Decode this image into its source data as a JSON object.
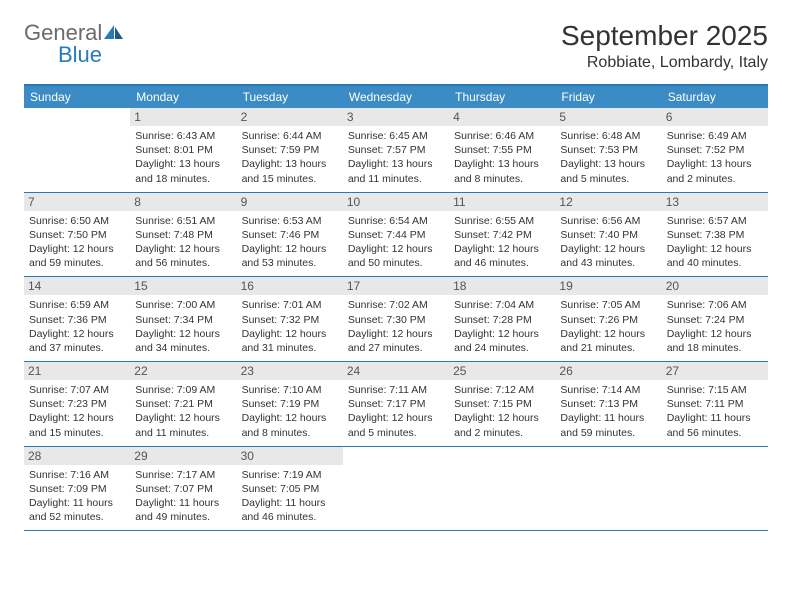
{
  "logo": {
    "text1": "General",
    "text2": "Blue"
  },
  "title": "September 2025",
  "location": "Robbiate, Lombardy, Italy",
  "colors": {
    "header_bg": "#3b8bc4",
    "border": "#2a7ab8",
    "daynum_bg": "#e8e8e8",
    "page_bg": "#ffffff"
  },
  "day_names": [
    "Sunday",
    "Monday",
    "Tuesday",
    "Wednesday",
    "Thursday",
    "Friday",
    "Saturday"
  ],
  "weeks": [
    [
      {
        "n": "",
        "sunrise": "",
        "sunset": "",
        "daylight": ""
      },
      {
        "n": "1",
        "sunrise": "Sunrise: 6:43 AM",
        "sunset": "Sunset: 8:01 PM",
        "daylight": "Daylight: 13 hours and 18 minutes."
      },
      {
        "n": "2",
        "sunrise": "Sunrise: 6:44 AM",
        "sunset": "Sunset: 7:59 PM",
        "daylight": "Daylight: 13 hours and 15 minutes."
      },
      {
        "n": "3",
        "sunrise": "Sunrise: 6:45 AM",
        "sunset": "Sunset: 7:57 PM",
        "daylight": "Daylight: 13 hours and 11 minutes."
      },
      {
        "n": "4",
        "sunrise": "Sunrise: 6:46 AM",
        "sunset": "Sunset: 7:55 PM",
        "daylight": "Daylight: 13 hours and 8 minutes."
      },
      {
        "n": "5",
        "sunrise": "Sunrise: 6:48 AM",
        "sunset": "Sunset: 7:53 PM",
        "daylight": "Daylight: 13 hours and 5 minutes."
      },
      {
        "n": "6",
        "sunrise": "Sunrise: 6:49 AM",
        "sunset": "Sunset: 7:52 PM",
        "daylight": "Daylight: 13 hours and 2 minutes."
      }
    ],
    [
      {
        "n": "7",
        "sunrise": "Sunrise: 6:50 AM",
        "sunset": "Sunset: 7:50 PM",
        "daylight": "Daylight: 12 hours and 59 minutes."
      },
      {
        "n": "8",
        "sunrise": "Sunrise: 6:51 AM",
        "sunset": "Sunset: 7:48 PM",
        "daylight": "Daylight: 12 hours and 56 minutes."
      },
      {
        "n": "9",
        "sunrise": "Sunrise: 6:53 AM",
        "sunset": "Sunset: 7:46 PM",
        "daylight": "Daylight: 12 hours and 53 minutes."
      },
      {
        "n": "10",
        "sunrise": "Sunrise: 6:54 AM",
        "sunset": "Sunset: 7:44 PM",
        "daylight": "Daylight: 12 hours and 50 minutes."
      },
      {
        "n": "11",
        "sunrise": "Sunrise: 6:55 AM",
        "sunset": "Sunset: 7:42 PM",
        "daylight": "Daylight: 12 hours and 46 minutes."
      },
      {
        "n": "12",
        "sunrise": "Sunrise: 6:56 AM",
        "sunset": "Sunset: 7:40 PM",
        "daylight": "Daylight: 12 hours and 43 minutes."
      },
      {
        "n": "13",
        "sunrise": "Sunrise: 6:57 AM",
        "sunset": "Sunset: 7:38 PM",
        "daylight": "Daylight: 12 hours and 40 minutes."
      }
    ],
    [
      {
        "n": "14",
        "sunrise": "Sunrise: 6:59 AM",
        "sunset": "Sunset: 7:36 PM",
        "daylight": "Daylight: 12 hours and 37 minutes."
      },
      {
        "n": "15",
        "sunrise": "Sunrise: 7:00 AM",
        "sunset": "Sunset: 7:34 PM",
        "daylight": "Daylight: 12 hours and 34 minutes."
      },
      {
        "n": "16",
        "sunrise": "Sunrise: 7:01 AM",
        "sunset": "Sunset: 7:32 PM",
        "daylight": "Daylight: 12 hours and 31 minutes."
      },
      {
        "n": "17",
        "sunrise": "Sunrise: 7:02 AM",
        "sunset": "Sunset: 7:30 PM",
        "daylight": "Daylight: 12 hours and 27 minutes."
      },
      {
        "n": "18",
        "sunrise": "Sunrise: 7:04 AM",
        "sunset": "Sunset: 7:28 PM",
        "daylight": "Daylight: 12 hours and 24 minutes."
      },
      {
        "n": "19",
        "sunrise": "Sunrise: 7:05 AM",
        "sunset": "Sunset: 7:26 PM",
        "daylight": "Daylight: 12 hours and 21 minutes."
      },
      {
        "n": "20",
        "sunrise": "Sunrise: 7:06 AM",
        "sunset": "Sunset: 7:24 PM",
        "daylight": "Daylight: 12 hours and 18 minutes."
      }
    ],
    [
      {
        "n": "21",
        "sunrise": "Sunrise: 7:07 AM",
        "sunset": "Sunset: 7:23 PM",
        "daylight": "Daylight: 12 hours and 15 minutes."
      },
      {
        "n": "22",
        "sunrise": "Sunrise: 7:09 AM",
        "sunset": "Sunset: 7:21 PM",
        "daylight": "Daylight: 12 hours and 11 minutes."
      },
      {
        "n": "23",
        "sunrise": "Sunrise: 7:10 AM",
        "sunset": "Sunset: 7:19 PM",
        "daylight": "Daylight: 12 hours and 8 minutes."
      },
      {
        "n": "24",
        "sunrise": "Sunrise: 7:11 AM",
        "sunset": "Sunset: 7:17 PM",
        "daylight": "Daylight: 12 hours and 5 minutes."
      },
      {
        "n": "25",
        "sunrise": "Sunrise: 7:12 AM",
        "sunset": "Sunset: 7:15 PM",
        "daylight": "Daylight: 12 hours and 2 minutes."
      },
      {
        "n": "26",
        "sunrise": "Sunrise: 7:14 AM",
        "sunset": "Sunset: 7:13 PM",
        "daylight": "Daylight: 11 hours and 59 minutes."
      },
      {
        "n": "27",
        "sunrise": "Sunrise: 7:15 AM",
        "sunset": "Sunset: 7:11 PM",
        "daylight": "Daylight: 11 hours and 56 minutes."
      }
    ],
    [
      {
        "n": "28",
        "sunrise": "Sunrise: 7:16 AM",
        "sunset": "Sunset: 7:09 PM",
        "daylight": "Daylight: 11 hours and 52 minutes."
      },
      {
        "n": "29",
        "sunrise": "Sunrise: 7:17 AM",
        "sunset": "Sunset: 7:07 PM",
        "daylight": "Daylight: 11 hours and 49 minutes."
      },
      {
        "n": "30",
        "sunrise": "Sunrise: 7:19 AM",
        "sunset": "Sunset: 7:05 PM",
        "daylight": "Daylight: 11 hours and 46 minutes."
      },
      {
        "n": "",
        "sunrise": "",
        "sunset": "",
        "daylight": ""
      },
      {
        "n": "",
        "sunrise": "",
        "sunset": "",
        "daylight": ""
      },
      {
        "n": "",
        "sunrise": "",
        "sunset": "",
        "daylight": ""
      },
      {
        "n": "",
        "sunrise": "",
        "sunset": "",
        "daylight": ""
      }
    ]
  ]
}
